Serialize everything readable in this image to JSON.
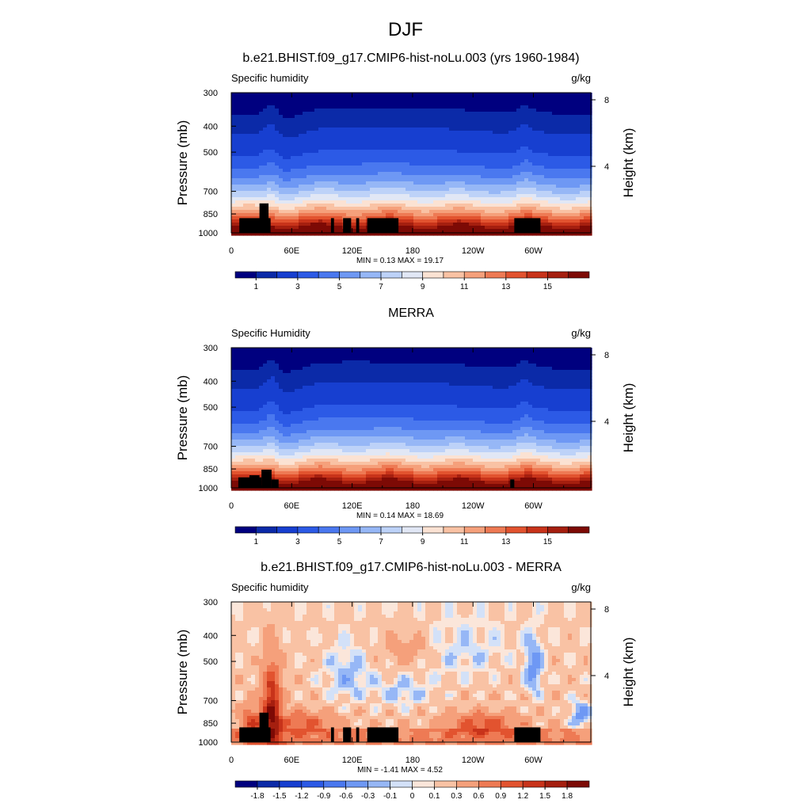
{
  "figure_title": "DJF",
  "chart_data": [
    {
      "type": "contour",
      "title": "b.e21.BHIST.f09_g17.CMIP6-hist-noLu.003 (yrs 1960-1984)",
      "left_label": "Specific humidity",
      "right_label": "g/kg",
      "ylabel": "Pressure (mb)",
      "y2label": "Height (km)",
      "xticks": [
        "0",
        "60E",
        "120E",
        "180",
        "120W",
        "60W"
      ],
      "xtick_lon": [
        0,
        60,
        120,
        180,
        240,
        300
      ],
      "xlim_lon": [
        0,
        357
      ],
      "yticks": [
        "300",
        "400",
        "500",
        "700",
        "850",
        "1000"
      ],
      "ytick_mb": [
        300,
        400,
        500,
        700,
        850,
        1000
      ],
      "ylim_mb": [
        300,
        1000
      ],
      "y2ticks": [
        "8",
        "4"
      ],
      "y2tick_km": [
        8,
        4
      ],
      "min_max_text": "MIN =   0.13  MAX =  19.17",
      "colorbar_ticks": [
        "1",
        "3",
        "5",
        "7",
        "9",
        "11",
        "13",
        "15"
      ],
      "colorbar_levels": [
        0.5,
        1,
        2,
        3,
        4,
        5,
        6,
        7,
        8,
        9,
        10,
        11,
        12,
        13,
        14,
        15
      ],
      "colorbar_colors": [
        "#00007f",
        "#0b2aa8",
        "#173fd0",
        "#2c5ae6",
        "#4a78ef",
        "#6e98f4",
        "#96b7f6",
        "#bdd2f8",
        "#e1e7f5",
        "#fbe2d3",
        "#f9c2a4",
        "#f5a07b",
        "#ee7a54",
        "#e2532f",
        "#c8331a",
        "#a51f0f",
        "#7d0a05"
      ]
    },
    {
      "type": "contour",
      "title": "MERRA",
      "left_label": "Specific Humidity",
      "right_label": "g/kg",
      "ylabel": "Pressure (mb)",
      "y2label": "Height (km)",
      "xticks": [
        "0",
        "60E",
        "120E",
        "180",
        "120W",
        "60W"
      ],
      "xtick_lon": [
        0,
        60,
        120,
        180,
        240,
        300
      ],
      "xlim_lon": [
        0,
        357
      ],
      "yticks": [
        "300",
        "400",
        "500",
        "700",
        "850",
        "1000"
      ],
      "ytick_mb": [
        300,
        400,
        500,
        700,
        850,
        1000
      ],
      "ylim_mb": [
        300,
        1000
      ],
      "y2ticks": [
        "8",
        "4"
      ],
      "y2tick_km": [
        8,
        4
      ],
      "min_max_text": "MIN =   0.14  MAX =  18.69",
      "colorbar_ticks": [
        "1",
        "3",
        "5",
        "7",
        "9",
        "11",
        "13",
        "15"
      ],
      "colorbar_levels": [
        0.5,
        1,
        2,
        3,
        4,
        5,
        6,
        7,
        8,
        9,
        10,
        11,
        12,
        13,
        14,
        15
      ],
      "colorbar_colors": [
        "#00007f",
        "#0b2aa8",
        "#173fd0",
        "#2c5ae6",
        "#4a78ef",
        "#6e98f4",
        "#96b7f6",
        "#bdd2f8",
        "#e1e7f5",
        "#fbe2d3",
        "#f9c2a4",
        "#f5a07b",
        "#ee7a54",
        "#e2532f",
        "#c8331a",
        "#a51f0f",
        "#7d0a05"
      ]
    },
    {
      "type": "contour",
      "title": "b.e21.BHIST.f09_g17.CMIP6-hist-noLu.003 - MERRA",
      "left_label": "Specific humidity",
      "right_label": "g/kg",
      "ylabel": "Pressure (mb)",
      "y2label": "Height (km)",
      "xticks": [
        "0",
        "60E",
        "120E",
        "180",
        "120W",
        "60W"
      ],
      "xtick_lon": [
        0,
        60,
        120,
        180,
        240,
        300
      ],
      "xlim_lon": [
        0,
        357
      ],
      "yticks": [
        "300",
        "400",
        "500",
        "700",
        "850",
        "1000"
      ],
      "ytick_mb": [
        300,
        400,
        500,
        700,
        850,
        1000
      ],
      "ylim_mb": [
        300,
        1000
      ],
      "y2ticks": [
        "8",
        "4"
      ],
      "y2tick_km": [
        8,
        4
      ],
      "min_max_text": "MIN =  -1.41  MAX =   4.52",
      "colorbar_ticks": [
        "-1.8",
        "-1.5",
        "-1.2",
        "-0.9",
        "-0.6",
        "-0.3",
        "-0.1",
        "0",
        "0.1",
        "0.3",
        "0.6",
        "0.9",
        "1.2",
        "1.5",
        "1.8"
      ],
      "colorbar_levels": [
        -1.8,
        -1.5,
        -1.2,
        -0.9,
        -0.6,
        -0.3,
        -0.1,
        0,
        0.1,
        0.3,
        0.6,
        0.9,
        1.2,
        1.5,
        1.8
      ],
      "colorbar_colors": [
        "#00007f",
        "#0b2aa8",
        "#173fd0",
        "#2c5ae6",
        "#4a78ef",
        "#6e98f4",
        "#96b7f6",
        "#d3e1f8",
        "#fbe6da",
        "#f9c2a4",
        "#f5a07b",
        "#ee7a54",
        "#e2532f",
        "#c8331a",
        "#a51f0f",
        "#7d0a05"
      ]
    }
  ]
}
